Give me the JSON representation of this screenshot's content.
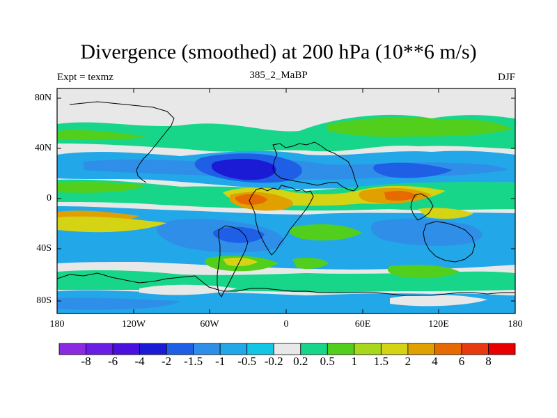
{
  "title": "Divergence (smoothed) at 200 hPa (10**6 m/s)",
  "left_label": "Expt = texmz",
  "center_label": "385_2_MaBP",
  "right_label": "DJF",
  "lat_labels": [
    "80N",
    "40N",
    "0",
    "40S",
    "80S"
  ],
  "lon_labels": [
    "180",
    "120W",
    "60W",
    "0",
    "60E",
    "120E",
    "180"
  ],
  "colorbar": {
    "labels": [
      "-8",
      "-6",
      "-4",
      "-2",
      "-1.5",
      "-1",
      "-0.5",
      "-0.2",
      "0.2",
      "0.5",
      "1",
      "1.5",
      "2",
      "4",
      "6",
      "8"
    ],
    "colors": [
      "#8a2be2",
      "#6a1de6",
      "#4b10e0",
      "#1b1bd6",
      "#1e5fe6",
      "#2f8fe8",
      "#22a8e8",
      "#13c6e6",
      "#e8e8e8",
      "#17d68a",
      "#52cf1c",
      "#a8d81c",
      "#d4d414",
      "#e0a000",
      "#e66a00",
      "#e83a10",
      "#e80000"
    ]
  },
  "colors": {
    "background": "#e8e8e8",
    "frame": "#000000",
    "coast": "#000000"
  }
}
